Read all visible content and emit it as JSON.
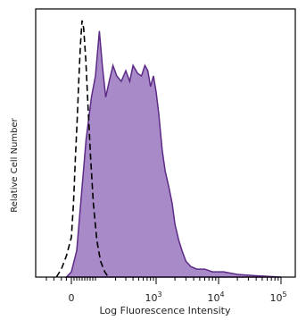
{
  "chart_data": {
    "type": "area",
    "xlabel": "Log Fluorescence Intensity",
    "ylabel": "Relative Cell Number",
    "x_scale": "biexponential",
    "x_ticks": [
      {
        "value": 0,
        "label": "0"
      },
      {
        "value": 1000,
        "label": "10",
        "exp": "3"
      },
      {
        "value": 10000,
        "label": "10",
        "exp": "4"
      },
      {
        "value": 100000,
        "label": "10",
        "exp": "5"
      }
    ],
    "ylim": [
      0,
      1
    ],
    "grid": false,
    "series": [
      {
        "style": "dashed",
        "color": "#000000",
        "points": [
          [
            -60,
            0.0
          ],
          [
            -40,
            0.03
          ],
          [
            -20,
            0.08
          ],
          [
            0,
            0.15
          ],
          [
            8,
            0.28
          ],
          [
            15,
            0.45
          ],
          [
            22,
            0.6
          ],
          [
            28,
            0.75
          ],
          [
            34,
            0.88
          ],
          [
            40,
            0.97
          ],
          [
            46,
            0.94
          ],
          [
            54,
            0.82
          ],
          [
            62,
            0.65
          ],
          [
            72,
            0.45
          ],
          [
            82,
            0.28
          ],
          [
            95,
            0.14
          ],
          [
            110,
            0.06
          ],
          [
            130,
            0.02
          ],
          [
            150,
            0.0
          ]
        ]
      },
      {
        "style": "filled",
        "color": "#5b2a86",
        "fill": "#a98ac9",
        "points": [
          [
            -20,
            0.0
          ],
          [
            0,
            0.02
          ],
          [
            20,
            0.1
          ],
          [
            35,
            0.28
          ],
          [
            55,
            0.52
          ],
          [
            75,
            0.68
          ],
          [
            90,
            0.76
          ],
          [
            105,
            0.93
          ],
          [
            118,
            0.8
          ],
          [
            135,
            0.68
          ],
          [
            155,
            0.74
          ],
          [
            180,
            0.8
          ],
          [
            210,
            0.76
          ],
          [
            250,
            0.74
          ],
          [
            300,
            0.78
          ],
          [
            350,
            0.74
          ],
          [
            400,
            0.8
          ],
          [
            480,
            0.77
          ],
          [
            560,
            0.76
          ],
          [
            640,
            0.8
          ],
          [
            720,
            0.78
          ],
          [
            800,
            0.72
          ],
          [
            900,
            0.76
          ],
          [
            1000,
            0.7
          ],
          [
            1100,
            0.62
          ],
          [
            1250,
            0.48
          ],
          [
            1400,
            0.4
          ],
          [
            1600,
            0.34
          ],
          [
            1800,
            0.28
          ],
          [
            2000,
            0.2
          ],
          [
            2300,
            0.14
          ],
          [
            2600,
            0.1
          ],
          [
            3000,
            0.06
          ],
          [
            3600,
            0.04
          ],
          [
            4500,
            0.03
          ],
          [
            6000,
            0.03
          ],
          [
            8000,
            0.02
          ],
          [
            12000,
            0.02
          ],
          [
            20000,
            0.01
          ],
          [
            40000,
            0.005
          ],
          [
            100000,
            0.0
          ]
        ]
      }
    ]
  }
}
